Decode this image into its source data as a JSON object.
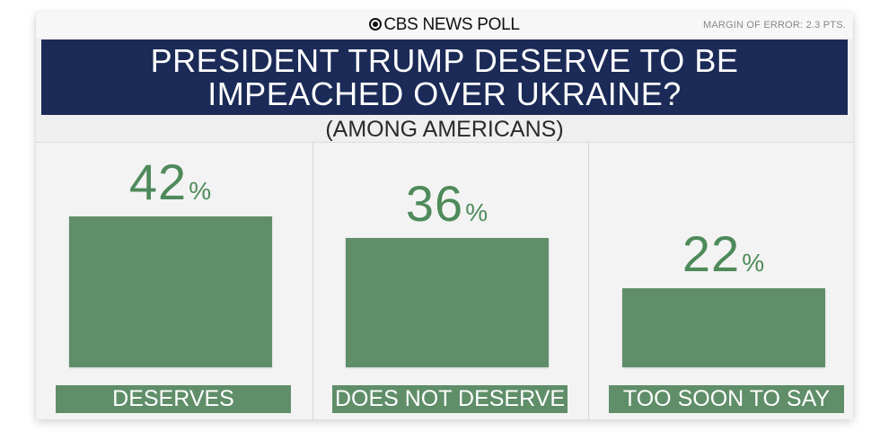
{
  "header": {
    "brand": "CBS NEWS POLL",
    "margin_of_error": "MARGIN OF ERROR: 2.3 PTS."
  },
  "chart_data": {
    "type": "bar",
    "title": "PRESIDENT TRUMP DESERVE TO BE IMPEACHED OVER UKRAINE?",
    "subtitle": "(AMONG AMERICANS)",
    "categories": [
      "DESERVES",
      "DOES NOT DESERVE",
      "TOO SOON TO SAY"
    ],
    "values": [
      42,
      36,
      22
    ],
    "value_suffix": "%",
    "ylim": [
      0,
      42
    ],
    "xlabel": "",
    "ylabel": "",
    "bar_color": "#5f8e69",
    "value_color": "#4e8a5a"
  },
  "colors": {
    "title_band": "#1b2a57",
    "background": "#efefef"
  }
}
